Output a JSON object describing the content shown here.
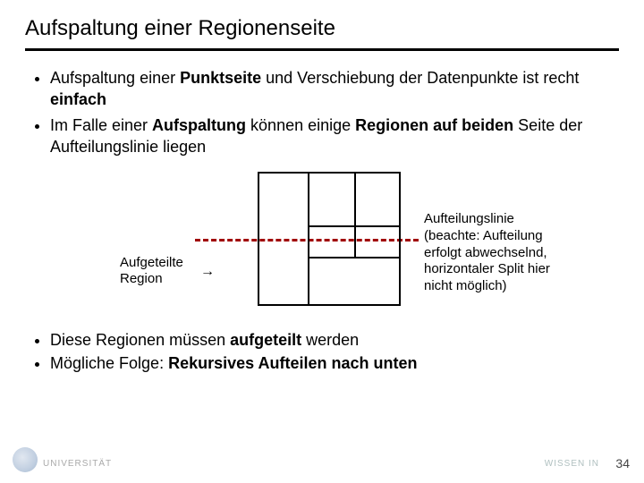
{
  "title": "Aufspaltung einer Regionenseite",
  "bullets_top": [
    {
      "pre": "Aufspaltung einer ",
      "b1": "Punktseite",
      "mid": " und Verschiebung der Datenpunkte ist recht ",
      "b2": "einfach",
      "post": ""
    },
    {
      "pre": "Im Falle einer ",
      "b1": "Aufspaltung",
      "mid": " können einige ",
      "b2": "Regionen auf beiden",
      "post": " Seite der Aufteilungslinie liegen"
    }
  ],
  "figure": {
    "label_left_l1": "Aufgeteilte",
    "label_left_l2": "Region",
    "label_right_l1": "Aufteilungslinie",
    "label_right_l2": "(beachte: Aufteilung",
    "label_right_l3": " erfolgt abwechselnd,",
    "label_right_l4": " horizontaler Split hier",
    "label_right_l5": " nicht möglich)",
    "dashed_color": "#a00000",
    "box_border": "#000000"
  },
  "bullets_bottom": [
    {
      "pre": "Diese Regionen müssen ",
      "b1": "aufgeteilt",
      "post": " werden"
    },
    {
      "pre": "Mögliche Folge: ",
      "b1": "Rekursives Aufteilen nach unten",
      "post": ""
    }
  ],
  "footer": {
    "left": "UNIVERSITÄT",
    "right": "WISSEN IN",
    "page": "34"
  }
}
